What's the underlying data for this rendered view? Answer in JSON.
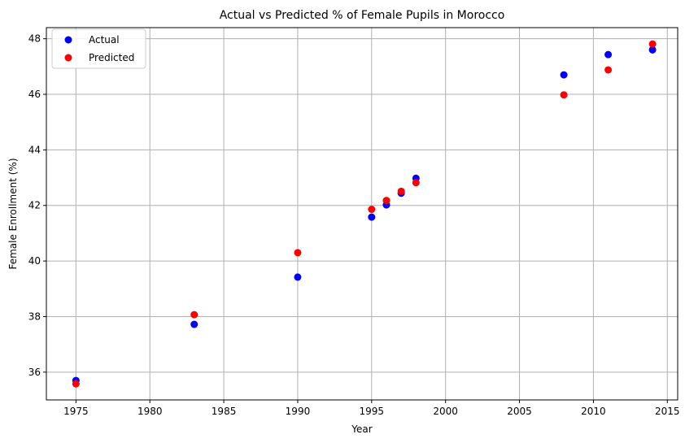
{
  "chart_data": {
    "type": "scatter",
    "title": "Actual vs Predicted % of Female Pupils in Morocco",
    "xlabel": "Year",
    "ylabel": "Female Enrollment (%)",
    "xlim": [
      1973.0,
      2015.7
    ],
    "ylim": [
      35.0,
      48.4
    ],
    "xticks": [
      1975,
      1980,
      1985,
      1990,
      1995,
      2000,
      2005,
      2010,
      2015
    ],
    "yticks": [
      36,
      38,
      40,
      42,
      44,
      46,
      48
    ],
    "grid": true,
    "legend_position": "top-left",
    "series": [
      {
        "name": "Actual",
        "color": "#0000ff",
        "x": [
          1975,
          1983,
          1990,
          1995,
          1996,
          1997,
          1998,
          2008,
          2011,
          2014
        ],
        "y": [
          35.7,
          37.72,
          39.42,
          41.58,
          42.02,
          42.44,
          42.98,
          46.7,
          47.43,
          47.6
        ]
      },
      {
        "name": "Predicted",
        "color": "#ff0000",
        "x": [
          1975,
          1983,
          1990,
          1995,
          1996,
          1997,
          1998,
          2008,
          2011,
          2014
        ],
        "y": [
          35.58,
          38.07,
          40.3,
          41.86,
          42.18,
          42.51,
          42.82,
          45.98,
          46.88,
          47.81
        ]
      }
    ]
  }
}
